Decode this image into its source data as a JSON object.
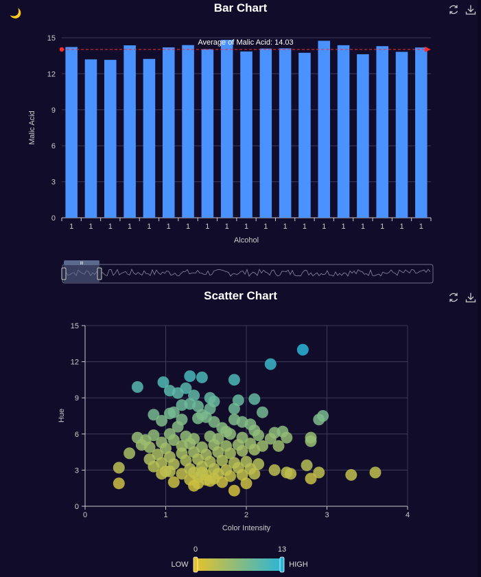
{
  "theme_toggle": "🌙",
  "bar_chart": {
    "title": "Bar Chart",
    "toolbox": {
      "restore": "restore-icon",
      "save": "download-icon"
    }
  },
  "scatter_chart": {
    "title": "Scatter Chart",
    "toolbox": {
      "restore": "restore-icon",
      "save": "download-icon"
    },
    "visual_map": {
      "min_label": "0",
      "max_label": "13",
      "low_text": "LOW",
      "high_text": "HIGH",
      "low_color": "#e6c229",
      "high_color": "#2ab5d8"
    }
  },
  "colors": {
    "background": "#100c2a",
    "bar": "#4992ff",
    "average_line": "#ff2b2b",
    "axis": "#cccccc",
    "grid": "#3d3a5a"
  },
  "chart_data": [
    {
      "type": "bar",
      "title": "Bar Chart",
      "xlabel": "Alcohol",
      "ylabel": "Malic Acid",
      "categories": [
        "1",
        "1",
        "1",
        "1",
        "1",
        "1",
        "1",
        "1",
        "1",
        "1",
        "1",
        "1",
        "1",
        "1",
        "1",
        "1",
        "1",
        "1",
        "1"
      ],
      "values": [
        14.23,
        13.2,
        13.16,
        14.37,
        13.24,
        14.2,
        14.39,
        14.06,
        14.83,
        13.86,
        14.1,
        14.12,
        13.75,
        14.75,
        14.38,
        13.63,
        14.3,
        13.83,
        14.19
      ],
      "ylim": [
        0,
        15
      ],
      "yticks": [
        0,
        3,
        6,
        9,
        12,
        15
      ],
      "average": {
        "label": "Average of Malic Acid: 14.03",
        "value": 14.03
      },
      "grid": true,
      "data_zoom": {
        "start_fraction": 0,
        "end_fraction": 0.1,
        "handle_label": "III"
      }
    },
    {
      "type": "scatter",
      "title": "Scatter Chart",
      "xlabel": "Color Intensity",
      "ylabel": "Hue",
      "xlim": [
        0,
        4
      ],
      "ylim": [
        0,
        15
      ],
      "xticks": [
        0,
        1,
        2,
        3,
        4
      ],
      "yticks": [
        0,
        3,
        6,
        9,
        12,
        15
      ],
      "grid": true,
      "color_range": [
        0,
        13
      ],
      "points": [
        [
          2.7,
          13.0
        ],
        [
          2.3,
          11.8
        ],
        [
          1.3,
          10.8
        ],
        [
          1.45,
          10.7
        ],
        [
          1.85,
          10.5
        ],
        [
          0.97,
          10.3
        ],
        [
          0.65,
          9.9
        ],
        [
          1.05,
          9.6
        ],
        [
          1.15,
          9.4
        ],
        [
          1.25,
          9.8
        ],
        [
          1.35,
          9.2
        ],
        [
          1.55,
          9.0
        ],
        [
          1.6,
          8.7
        ],
        [
          1.9,
          8.8
        ],
        [
          2.1,
          8.9
        ],
        [
          1.3,
          8.5
        ],
        [
          1.2,
          8.4
        ],
        [
          1.4,
          8.3
        ],
        [
          1.55,
          8.1
        ],
        [
          1.85,
          8.1
        ],
        [
          1.05,
          7.7
        ],
        [
          1.1,
          7.8
        ],
        [
          0.85,
          7.6
        ],
        [
          1.45,
          7.6
        ],
        [
          1.5,
          7.4
        ],
        [
          1.6,
          7.0
        ],
        [
          2.2,
          7.8
        ],
        [
          2.95,
          7.5
        ],
        [
          2.9,
          7.2
        ],
        [
          0.95,
          7.1
        ],
        [
          1.2,
          7.2
        ],
        [
          1.4,
          7.3
        ],
        [
          1.85,
          7.2
        ],
        [
          1.95,
          7.0
        ],
        [
          2.05,
          6.8
        ],
        [
          1.15,
          6.6
        ],
        [
          1.7,
          6.5
        ],
        [
          1.75,
          6.2
        ],
        [
          2.1,
          6.3
        ],
        [
          2.35,
          6.1
        ],
        [
          2.45,
          6.2
        ],
        [
          1.05,
          6.0
        ],
        [
          0.85,
          5.9
        ],
        [
          0.65,
          5.7
        ],
        [
          0.75,
          5.5
        ],
        [
          0.95,
          5.3
        ],
        [
          1.1,
          5.5
        ],
        [
          1.25,
          5.8
        ],
        [
          1.35,
          5.6
        ],
        [
          1.55,
          5.8
        ],
        [
          1.65,
          5.6
        ],
        [
          1.8,
          6.0
        ],
        [
          1.95,
          5.7
        ],
        [
          2.15,
          5.9
        ],
        [
          2.3,
          5.6
        ],
        [
          2.5,
          5.7
        ],
        [
          2.8,
          5.7
        ],
        [
          2.8,
          5.4
        ],
        [
          0.7,
          5.1
        ],
        [
          0.8,
          4.9
        ],
        [
          1.0,
          4.8
        ],
        [
          1.2,
          5.0
        ],
        [
          1.3,
          5.2
        ],
        [
          1.45,
          4.9
        ],
        [
          1.6,
          5.1
        ],
        [
          1.75,
          5.0
        ],
        [
          1.9,
          5.1
        ],
        [
          2.05,
          5.2
        ],
        [
          2.2,
          5.0
        ],
        [
          2.4,
          5.0
        ],
        [
          0.55,
          4.4
        ],
        [
          0.9,
          4.3
        ],
        [
          1.05,
          4.1
        ],
        [
          1.2,
          4.4
        ],
        [
          1.35,
          4.5
        ],
        [
          1.5,
          4.3
        ],
        [
          1.65,
          4.5
        ],
        [
          1.8,
          4.4
        ],
        [
          1.95,
          4.6
        ],
        [
          2.1,
          4.7
        ],
        [
          0.8,
          3.9
        ],
        [
          0.95,
          3.6
        ],
        [
          1.1,
          3.5
        ],
        [
          1.25,
          3.8
        ],
        [
          1.4,
          3.9
        ],
        [
          1.55,
          3.7
        ],
        [
          1.7,
          3.8
        ],
        [
          1.85,
          3.6
        ],
        [
          2.0,
          3.7
        ],
        [
          2.15,
          3.5
        ],
        [
          0.42,
          3.2
        ],
        [
          0.85,
          3.3
        ],
        [
          1.0,
          2.9
        ],
        [
          1.3,
          3.1
        ],
        [
          1.45,
          3.3
        ],
        [
          1.6,
          3.1
        ],
        [
          1.75,
          3.0
        ],
        [
          1.9,
          3.2
        ],
        [
          2.05,
          3.1
        ],
        [
          2.35,
          3.0
        ],
        [
          2.5,
          2.8
        ],
        [
          2.55,
          2.7
        ],
        [
          2.75,
          3.4
        ],
        [
          2.9,
          2.8
        ],
        [
          3.3,
          2.6
        ],
        [
          3.6,
          2.8
        ],
        [
          0.95,
          2.7
        ],
        [
          1.05,
          2.9
        ],
        [
          1.2,
          2.7
        ],
        [
          1.35,
          2.8
        ],
        [
          1.5,
          2.6
        ],
        [
          1.65,
          2.7
        ],
        [
          1.8,
          2.5
        ],
        [
          1.95,
          2.6
        ],
        [
          2.1,
          2.7
        ],
        [
          0.42,
          1.9
        ],
        [
          1.1,
          2.0
        ],
        [
          1.3,
          2.2
        ],
        [
          1.4,
          1.9
        ],
        [
          1.55,
          2.1
        ],
        [
          1.7,
          2.0
        ],
        [
          1.85,
          1.3
        ],
        [
          2.0,
          1.9
        ],
        [
          2.8,
          2.3
        ],
        [
          1.4,
          2.4
        ],
        [
          1.45,
          2.8
        ],
        [
          1.5,
          2.2
        ],
        [
          1.6,
          2.3
        ],
        [
          1.35,
          1.7
        ]
      ]
    }
  ]
}
